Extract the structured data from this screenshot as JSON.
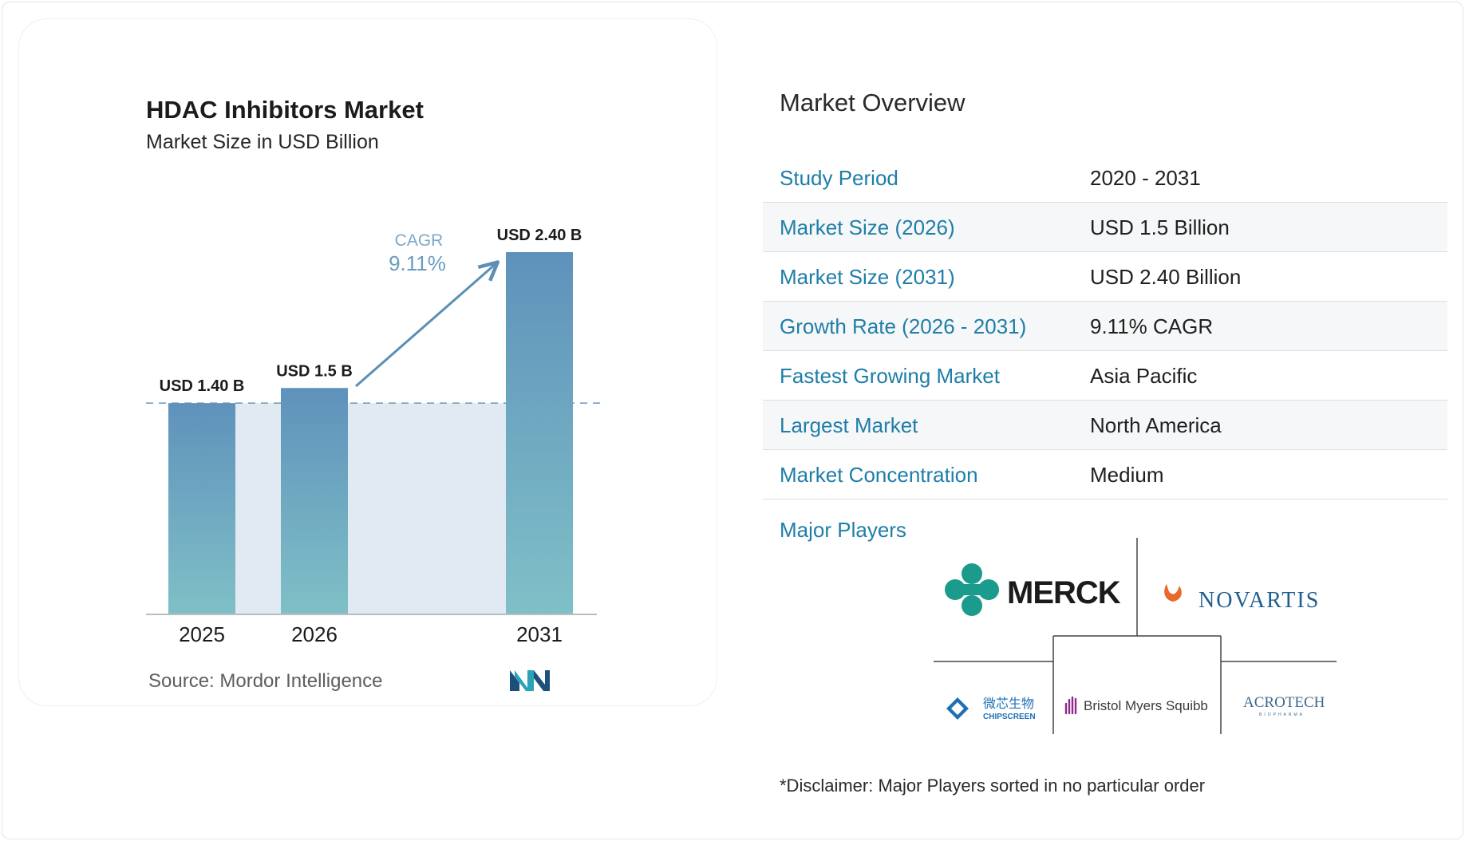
{
  "chart_data": {
    "type": "bar",
    "title": "HDAC Inhibitors Market",
    "subtitle": "Market Size in USD Billion",
    "categories": [
      "2025",
      "2026",
      "2031"
    ],
    "values": [
      1.4,
      1.5,
      2.4
    ],
    "data_labels": [
      "USD 1.40 B",
      "USD 1.5 B",
      "USD 2.40 B"
    ],
    "ylim": [
      0,
      2.4
    ],
    "grid": false,
    "annotation": {
      "label": "CAGR",
      "value": "9.11%"
    },
    "colors": {
      "bar_top": "#5f92bb",
      "bar_bottom": "#7fc0c7",
      "band": "#e1e9f2",
      "arrow": "#5b8fb5",
      "cagr_text": "#6a9cc0"
    }
  },
  "source": "Source: Mordor Intelligence",
  "overview": {
    "title": "Market Overview",
    "rows": [
      {
        "label": "Study Period",
        "value": "2020 - 2031"
      },
      {
        "label": "Market Size (2026)",
        "value": "USD 1.5 Billion"
      },
      {
        "label": "Market Size (2031)",
        "value": "USD 2.40 Billion"
      },
      {
        "label": "Growth Rate (2026 - 2031)",
        "value": "9.11% CAGR"
      },
      {
        "label": "Fastest Growing Market",
        "value": "Asia Pacific"
      },
      {
        "label": "Largest Market",
        "value": "North America"
      },
      {
        "label": "Market Concentration",
        "value": "Medium"
      }
    ],
    "players_label": "Major Players",
    "players": [
      {
        "name": "MERCK"
      },
      {
        "name": "NOVARTIS"
      },
      {
        "name": "微芯生物",
        "sub": "CHIPSCREEN"
      },
      {
        "name": "Bristol Myers Squibb"
      },
      {
        "name": "ACROTECH",
        "sub": "BIOPHARMA"
      }
    ],
    "disclaimer": "*Disclaimer: Major Players sorted in no particular order"
  },
  "colors": {
    "accent": "#1e7ea8",
    "merck": "#1a9b8c",
    "novartis_text": "#1f5f8f",
    "novartis_flame": "#e8692b",
    "bms": "#8a2c8a",
    "chipscreen": "#1f6fb5"
  }
}
